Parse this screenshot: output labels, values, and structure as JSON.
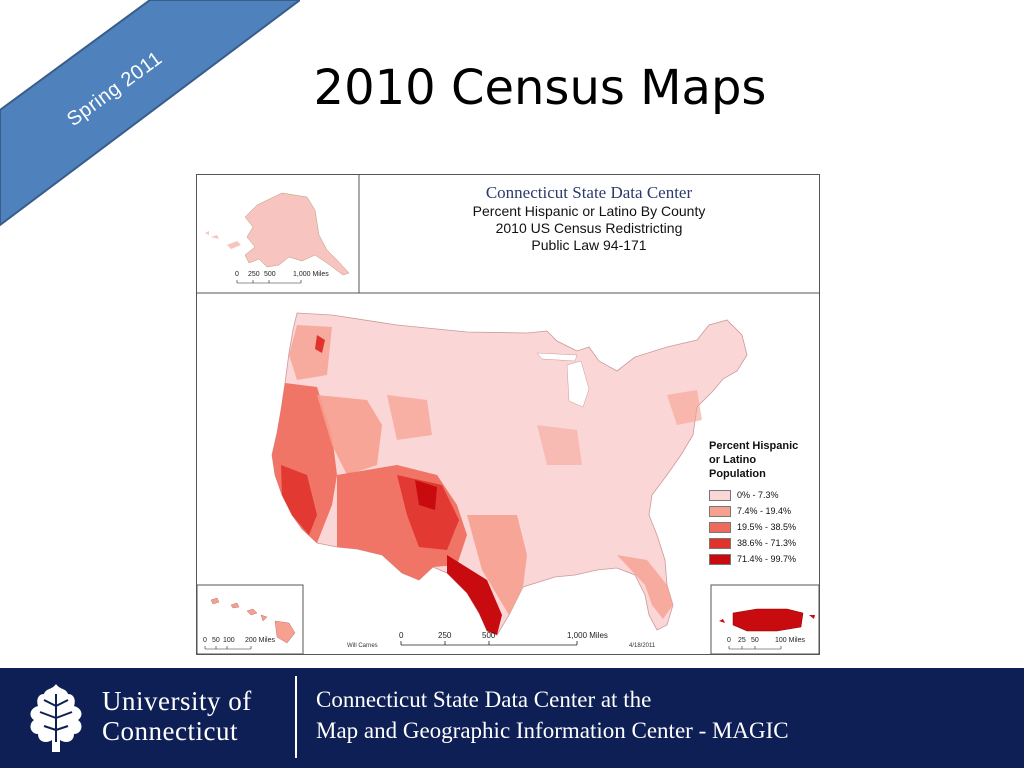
{
  "slide": {
    "ribbon_text": "Spring 2011",
    "title": "2010 Census Maps"
  },
  "map": {
    "organization": "Connecticut State Data Center",
    "subtitle_lines": [
      "Percent Hispanic or Latino By County",
      "2010 US Census Redistricting",
      "Public Law 94-171"
    ],
    "legend": {
      "title_lines": [
        "Percent Hispanic",
        "or Latino",
        "Population"
      ],
      "items": [
        {
          "label": "0% - 7.3%",
          "color": "#fbd6d6"
        },
        {
          "label": "7.4% - 19.4%",
          "color": "#f6a090"
        },
        {
          "label": "19.5% - 38.5%",
          "color": "#ee6a5a"
        },
        {
          "label": "38.6% - 71.3%",
          "color": "#e0332c"
        },
        {
          "label": "71.4% - 99.7%",
          "color": "#c80b0e"
        }
      ]
    },
    "scale_main": {
      "ticks": [
        "0",
        "250",
        "500",
        "1,000 Miles"
      ]
    },
    "scale_alaska": {
      "ticks": [
        "0",
        "250",
        "500",
        "1,000 Miles"
      ]
    },
    "scale_hawaii": {
      "ticks": [
        "0",
        "50",
        "100",
        "200 Miles"
      ]
    },
    "scale_puerto_rico": {
      "ticks": [
        "0",
        "25",
        "50",
        "100 Miles"
      ]
    },
    "author": "Will Carnes",
    "date": "4/18/2011",
    "insets": [
      "Alaska",
      "Hawaii",
      "Puerto Rico"
    ]
  },
  "footer": {
    "university_lines": [
      "University of",
      "Connecticut"
    ],
    "center_lines": [
      "Connecticut State Data Center at the",
      "Map and Geographic Information Center - MAGIC"
    ]
  }
}
